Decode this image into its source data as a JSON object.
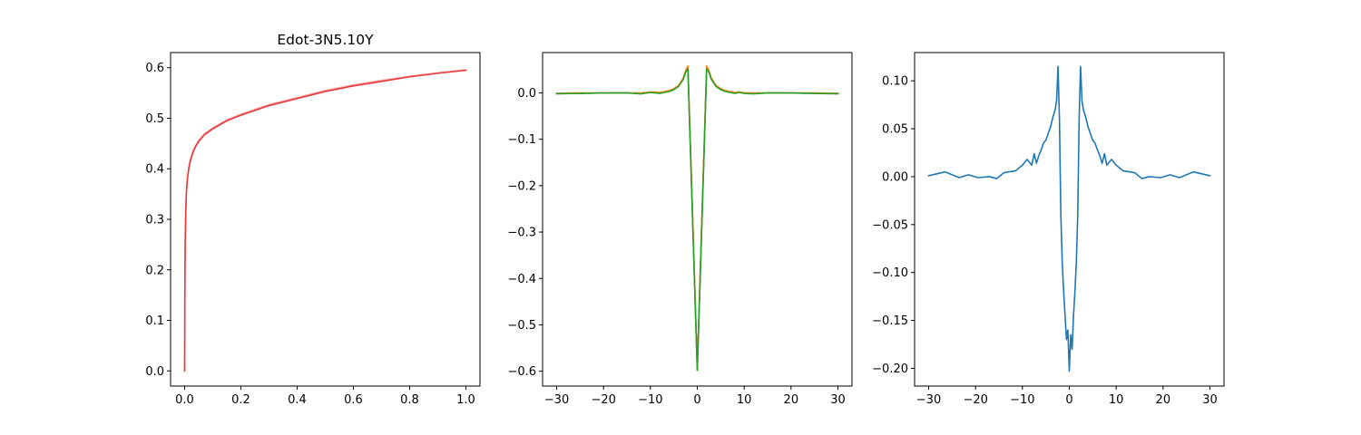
{
  "chart_data": [
    {
      "type": "line",
      "title": "Edot-3N5.10Y",
      "xlabel": "",
      "ylabel": "",
      "xlim": [
        -0.05,
        1.05
      ],
      "ylim": [
        -0.03,
        0.63
      ],
      "xticks": [
        0.0,
        0.2,
        0.4,
        0.6,
        0.8,
        1.0
      ],
      "xtick_labels": [
        "0.0",
        "0.2",
        "0.4",
        "0.6",
        "0.8",
        "1.0"
      ],
      "yticks": [
        0.0,
        0.1,
        0.2,
        0.3,
        0.4,
        0.5,
        0.6
      ],
      "ytick_labels": [
        "0.0",
        "0.1",
        "0.2",
        "0.3",
        "0.4",
        "0.5",
        "0.6"
      ],
      "grid": false,
      "series": [
        {
          "color": "#f4a6a6",
          "x": [
            0,
            0.001,
            0.002,
            0.004,
            0.006,
            0.01,
            0.015,
            0.02,
            0.03,
            0.04,
            0.05,
            0.07,
            0.1,
            0.15,
            0.2,
            0.3,
            0.4,
            0.5,
            0.6,
            0.7,
            0.8,
            0.9,
            1.0
          ],
          "y": [
            0,
            0.19,
            0.26,
            0.32,
            0.355,
            0.385,
            0.405,
            0.418,
            0.436,
            0.447,
            0.456,
            0.469,
            0.481,
            0.497,
            0.508,
            0.527,
            0.541,
            0.555,
            0.566,
            0.575,
            0.583,
            0.59,
            0.596
          ]
        },
        {
          "color": "#e8393b",
          "x": [
            0,
            0.001,
            0.002,
            0.004,
            0.006,
            0.01,
            0.015,
            0.02,
            0.03,
            0.04,
            0.05,
            0.07,
            0.1,
            0.15,
            0.2,
            0.3,
            0.4,
            0.5,
            0.6,
            0.7,
            0.8,
            0.9,
            1.0
          ],
          "y": [
            0,
            0.18,
            0.25,
            0.31,
            0.35,
            0.381,
            0.401,
            0.415,
            0.433,
            0.445,
            0.454,
            0.467,
            0.479,
            0.495,
            0.506,
            0.525,
            0.539,
            0.553,
            0.564,
            0.573,
            0.582,
            0.589,
            0.595
          ]
        }
      ]
    },
    {
      "type": "line",
      "title": "",
      "xlabel": "",
      "ylabel": "",
      "xlim": [
        -33,
        33
      ],
      "ylim": [
        -0.632,
        0.087
      ],
      "xticks": [
        -30,
        -20,
        -10,
        0,
        10,
        20,
        30
      ],
      "xtick_labels": [
        "−30",
        "−20",
        "−10",
        "0",
        "10",
        "20",
        "30"
      ],
      "yticks": [
        0.0,
        -0.1,
        -0.2,
        -0.3,
        -0.4,
        -0.5,
        -0.6
      ],
      "ytick_labels": [
        "0.0",
        "−0.1",
        "−0.2",
        "−0.3",
        "−0.4",
        "−0.5",
        "−0.6"
      ],
      "grid": false,
      "series": [
        {
          "color": "#1f77b4",
          "x": [
            -30,
            -25,
            -20,
            -15,
            -12,
            -10,
            -9,
            -8,
            -7,
            -6,
            -5,
            -4,
            -3,
            -2.5,
            -2,
            -1,
            0,
            1,
            2,
            2.5,
            3,
            4,
            5,
            6,
            7,
            8,
            9,
            10,
            12,
            15,
            20,
            25,
            30
          ],
          "y": [
            -0.001,
            -0.001,
            0,
            0,
            -0.001,
            0.002,
            0.001,
            0.0,
            0.002,
            0.004,
            0.008,
            0.015,
            0.03,
            0.045,
            0.054,
            -0.27,
            -0.597,
            -0.27,
            0.054,
            0.045,
            0.03,
            0.015,
            0.008,
            0.004,
            0.002,
            0.0,
            0.002,
            0.0,
            -0.001,
            0,
            0,
            -0.001,
            -0.001
          ]
        },
        {
          "color": "#ff7f0e",
          "x": [
            -30,
            -25,
            -20,
            -15,
            -12,
            -10,
            -9,
            -8,
            -7,
            -6,
            -5,
            -4,
            -3,
            -2.5,
            -2,
            -1,
            0,
            1,
            2,
            2.5,
            3,
            4,
            5,
            6,
            7,
            8,
            9,
            10,
            12,
            15,
            20,
            25,
            30
          ],
          "y": [
            -0.001,
            0,
            0,
            0,
            0,
            0.002,
            0.002,
            0.001,
            0.003,
            0.005,
            0.009,
            0.016,
            0.032,
            0.048,
            0.058,
            -0.26,
            -0.594,
            -0.26,
            0.058,
            0.048,
            0.032,
            0.016,
            0.009,
            0.005,
            0.003,
            0.001,
            0.002,
            0.0,
            0,
            0,
            0,
            0,
            -0.001
          ]
        },
        {
          "color": "#2ca02c",
          "x": [
            -30,
            -25,
            -20,
            -15,
            -12,
            -10,
            -9,
            -8,
            -7,
            -6,
            -5,
            -4,
            -3,
            -2.5,
            -2,
            -1,
            0,
            1,
            2,
            2.5,
            3,
            4,
            5,
            6,
            7,
            8,
            9,
            10,
            12,
            15,
            20,
            25,
            30
          ],
          "y": [
            -0.002,
            -0.001,
            0,
            0,
            -0.002,
            0.001,
            0.0,
            -0.001,
            0.001,
            0.003,
            0.007,
            0.014,
            0.029,
            0.044,
            0.052,
            -0.275,
            -0.598,
            -0.275,
            0.052,
            0.044,
            0.029,
            0.014,
            0.007,
            0.003,
            0.001,
            -0.001,
            0.001,
            -0.001,
            -0.002,
            0,
            0,
            -0.001,
            -0.002
          ]
        }
      ]
    },
    {
      "type": "line",
      "title": "",
      "xlabel": "",
      "ylabel": "",
      "xlim": [
        -33,
        33
      ],
      "ylim": [
        -0.2185,
        0.1295
      ],
      "xticks": [
        -30,
        -20,
        -10,
        0,
        10,
        20,
        30
      ],
      "xtick_labels": [
        "−30",
        "−20",
        "−10",
        "0",
        "10",
        "20",
        "30"
      ],
      "yticks": [
        0.1,
        0.05,
        0.0,
        -0.05,
        -0.1,
        -0.15,
        -0.2
      ],
      "ytick_labels": [
        "0.10",
        "0.05",
        "0.00",
        "−0.05",
        "−0.10",
        "−0.15",
        "−0.20"
      ],
      "grid": false,
      "series": [
        {
          "color": "#1f77b4",
          "x": [
            -30,
            -26.5,
            -23.5,
            -21.5,
            -19.5,
            -17,
            -15.5,
            -14,
            -13,
            -11.5,
            -10,
            -9,
            -8,
            -7.5,
            -7,
            -6.5,
            -6,
            -5.5,
            -5,
            -4.5,
            -4,
            -3.5,
            -3,
            -2.7,
            -2.4,
            -2.1,
            -1.8,
            -1.5,
            -1.2,
            -0.9,
            -0.6,
            -0.3,
            0,
            0.3,
            0.6,
            0.9,
            1.2,
            1.5,
            1.8,
            2.1,
            2.4,
            2.7,
            3,
            3.5,
            4,
            4.5,
            5,
            5.5,
            6,
            6.5,
            7,
            7.5,
            8,
            9,
            10,
            11.5,
            13,
            14,
            15.5,
            17,
            19.5,
            21.5,
            23.5,
            26.5,
            30
          ],
          "y": [
            0.001,
            0.005,
            -0.001,
            0.002,
            -0.001,
            0.0,
            -0.002,
            0.004,
            0.005,
            0.006,
            0.012,
            0.018,
            0.012,
            0.024,
            0.014,
            0.022,
            0.028,
            0.035,
            0.038,
            0.045,
            0.052,
            0.062,
            0.07,
            0.08,
            0.115,
            0.06,
            -0.04,
            -0.09,
            -0.12,
            -0.145,
            -0.17,
            -0.16,
            -0.203,
            -0.165,
            -0.18,
            -0.145,
            -0.12,
            -0.09,
            -0.04,
            0.06,
            0.115,
            0.08,
            0.07,
            0.062,
            0.052,
            0.045,
            0.038,
            0.035,
            0.028,
            0.022,
            0.014,
            0.024,
            0.012,
            0.018,
            0.012,
            0.006,
            0.005,
            0.004,
            -0.002,
            0.0,
            -0.001,
            0.002,
            -0.001,
            0.005,
            0.001
          ]
        }
      ]
    }
  ]
}
